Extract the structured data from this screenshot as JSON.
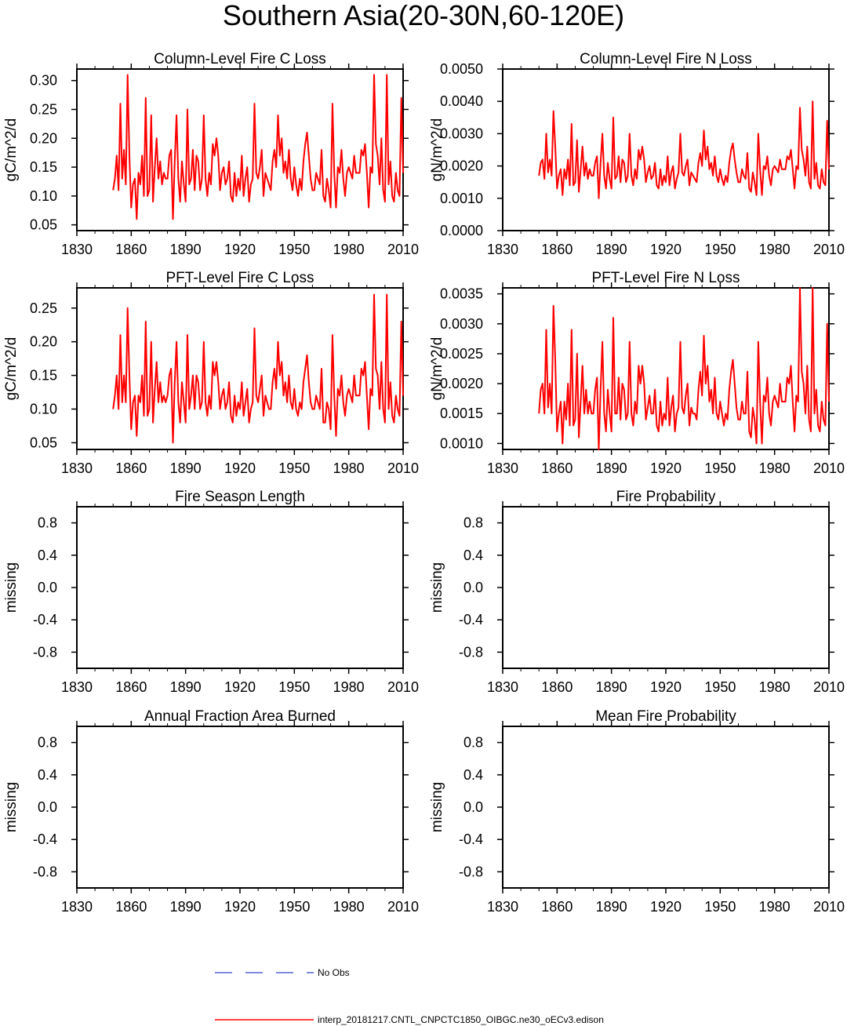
{
  "title": "Southern Asia(20-30N,60-120E)",
  "colors": {
    "series": "#ff0000",
    "obs": "#3344cc",
    "axis": "#000000"
  },
  "legend": {
    "obs_label": "No Obs",
    "model_label": "interp_20181217.CNTL_CNPCTC1850_OIBGC.ne30_oECv3.edison"
  },
  "chart_data": [
    {
      "type": "line",
      "title": "Column-Level Fire C Loss",
      "ylabel": "gC/m^2/d",
      "xlim": [
        1830,
        2010
      ],
      "ylim": [
        0.04,
        0.32
      ],
      "xticks": [
        "1830",
        "1860",
        "1890",
        "1920",
        "1950",
        "1980",
        "2010"
      ],
      "yticks": [
        {
          "v": 0.05,
          "label": "0.05"
        },
        {
          "v": 0.1,
          "label": "0.10"
        },
        {
          "v": 0.15,
          "label": "0.15"
        },
        {
          "v": 0.2,
          "label": "0.20"
        },
        {
          "v": 0.25,
          "label": "0.25"
        },
        {
          "v": 0.3,
          "label": "0.30"
        }
      ],
      "series": [
        {
          "x_start": 1850,
          "values": [
            0.11,
            0.13,
            0.17,
            0.11,
            0.26,
            0.13,
            0.18,
            0.12,
            0.31,
            0.17,
            0.08,
            0.12,
            0.13,
            0.06,
            0.14,
            0.12,
            0.17,
            0.1,
            0.27,
            0.1,
            0.11,
            0.24,
            0.09,
            0.15,
            0.2,
            0.13,
            0.16,
            0.12,
            0.14,
            0.13,
            0.13,
            0.17,
            0.18,
            0.06,
            0.16,
            0.24,
            0.13,
            0.09,
            0.16,
            0.12,
            0.09,
            0.25,
            0.12,
            0.13,
            0.18,
            0.11,
            0.17,
            0.16,
            0.11,
            0.13,
            0.24,
            0.13,
            0.1,
            0.14,
            0.12,
            0.19,
            0.17,
            0.2,
            0.17,
            0.11,
            0.14,
            0.15,
            0.12,
            0.13,
            0.16,
            0.1,
            0.09,
            0.14,
            0.1,
            0.13,
            0.11,
            0.17,
            0.1,
            0.13,
            0.15,
            0.09,
            0.12,
            0.13,
            0.26,
            0.14,
            0.13,
            0.15,
            0.18,
            0.1,
            0.14,
            0.13,
            0.12,
            0.11,
            0.16,
            0.18,
            0.15,
            0.24,
            0.17,
            0.2,
            0.14,
            0.16,
            0.13,
            0.18,
            0.13,
            0.11,
            0.15,
            0.12,
            0.1,
            0.13,
            0.11,
            0.16,
            0.19,
            0.21,
            0.17,
            0.13,
            0.11,
            0.11,
            0.14,
            0.13,
            0.12,
            0.18,
            0.1,
            0.09,
            0.13,
            0.11,
            0.08,
            0.26,
            0.14,
            0.08,
            0.15,
            0.14,
            0.18,
            0.13,
            0.1,
            0.14,
            0.15,
            0.14,
            0.13,
            0.17,
            0.14,
            0.14,
            0.14,
            0.18,
            0.17,
            0.19,
            0.14,
            0.08,
            0.15,
            0.14,
            0.31,
            0.19,
            0.17,
            0.12,
            0.2,
            0.11,
            0.09,
            0.31,
            0.12,
            0.16,
            0.1,
            0.09,
            0.14,
            0.11,
            0.1,
            0.27,
            0.14
          ]
        }
      ]
    },
    {
      "type": "line",
      "title": "Column-Level Fire N Loss",
      "ylabel": "gN/m^2/d",
      "xlim": [
        1830,
        2010
      ],
      "ylim": [
        0.0,
        0.005
      ],
      "xticks": [
        "1830",
        "1860",
        "1890",
        "1920",
        "1950",
        "1980",
        "2010"
      ],
      "yticks": [
        {
          "v": 0.0,
          "label": "0.0000"
        },
        {
          "v": 0.001,
          "label": "0.0010"
        },
        {
          "v": 0.002,
          "label": "0.0020"
        },
        {
          "v": 0.003,
          "label": "0.0030"
        },
        {
          "v": 0.004,
          "label": "0.0040"
        },
        {
          "v": 0.005,
          "label": "0.0050"
        }
      ],
      "series": [
        {
          "x_start": 1850,
          "values": [
            0.0017,
            0.0021,
            0.0022,
            0.0016,
            0.003,
            0.0018,
            0.0022,
            0.0017,
            0.0037,
            0.0026,
            0.0013,
            0.0017,
            0.0019,
            0.0011,
            0.0019,
            0.0016,
            0.0022,
            0.0014,
            0.0033,
            0.0014,
            0.0015,
            0.0028,
            0.0012,
            0.0019,
            0.0026,
            0.0017,
            0.0021,
            0.0016,
            0.0019,
            0.0017,
            0.0017,
            0.0021,
            0.0023,
            0.001,
            0.0021,
            0.003,
            0.0017,
            0.0013,
            0.0021,
            0.0016,
            0.0013,
            0.0035,
            0.0016,
            0.0017,
            0.0023,
            0.0015,
            0.0022,
            0.0021,
            0.0015,
            0.0017,
            0.003,
            0.0017,
            0.0014,
            0.0019,
            0.0016,
            0.0025,
            0.0022,
            0.0026,
            0.0022,
            0.0015,
            0.0018,
            0.002,
            0.0016,
            0.0017,
            0.0021,
            0.0014,
            0.0013,
            0.0019,
            0.0014,
            0.0017,
            0.0015,
            0.0023,
            0.0014,
            0.0018,
            0.002,
            0.0013,
            0.0016,
            0.0018,
            0.003,
            0.0018,
            0.0017,
            0.002,
            0.0022,
            0.0014,
            0.0018,
            0.0017,
            0.0016,
            0.0015,
            0.0021,
            0.0024,
            0.002,
            0.0031,
            0.0022,
            0.0026,
            0.0019,
            0.0021,
            0.0017,
            0.0023,
            0.0017,
            0.0015,
            0.0019,
            0.0016,
            0.0014,
            0.0017,
            0.0015,
            0.0021,
            0.0025,
            0.0027,
            0.0022,
            0.0018,
            0.0015,
            0.0015,
            0.0019,
            0.0017,
            0.0016,
            0.0024,
            0.0013,
            0.0012,
            0.0018,
            0.0015,
            0.0011,
            0.003,
            0.0019,
            0.0011,
            0.002,
            0.0019,
            0.0023,
            0.0017,
            0.0014,
            0.0019,
            0.002,
            0.0019,
            0.0018,
            0.0022,
            0.0019,
            0.0019,
            0.0019,
            0.0023,
            0.0022,
            0.0025,
            0.0019,
            0.0013,
            0.002,
            0.0019,
            0.0038,
            0.0025,
            0.0022,
            0.0017,
            0.0026,
            0.0015,
            0.0013,
            0.004,
            0.0016,
            0.0021,
            0.0014,
            0.0013,
            0.0019,
            0.0015,
            0.0014,
            0.0034,
            0.0019
          ]
        }
      ]
    },
    {
      "type": "line",
      "title": "PFT-Level Fire C Loss",
      "ylabel": "gC/m^2/d",
      "xlim": [
        1830,
        2010
      ],
      "ylim": [
        0.04,
        0.28
      ],
      "xticks": [
        "1830",
        "1860",
        "1890",
        "1920",
        "1950",
        "1980",
        "2010"
      ],
      "yticks": [
        {
          "v": 0.05,
          "label": "0.05"
        },
        {
          "v": 0.1,
          "label": "0.10"
        },
        {
          "v": 0.15,
          "label": "0.15"
        },
        {
          "v": 0.2,
          "label": "0.20"
        },
        {
          "v": 0.25,
          "label": "0.25"
        }
      ],
      "series": [
        {
          "x_start": 1850,
          "values": [
            0.1,
            0.12,
            0.15,
            0.1,
            0.21,
            0.11,
            0.15,
            0.11,
            0.25,
            0.15,
            0.07,
            0.11,
            0.12,
            0.06,
            0.12,
            0.11,
            0.15,
            0.09,
            0.23,
            0.09,
            0.1,
            0.2,
            0.08,
            0.13,
            0.17,
            0.11,
            0.14,
            0.11,
            0.12,
            0.11,
            0.12,
            0.15,
            0.16,
            0.05,
            0.14,
            0.2,
            0.11,
            0.08,
            0.14,
            0.11,
            0.08,
            0.21,
            0.1,
            0.12,
            0.15,
            0.1,
            0.15,
            0.14,
            0.1,
            0.11,
            0.2,
            0.11,
            0.09,
            0.12,
            0.1,
            0.17,
            0.15,
            0.17,
            0.14,
            0.1,
            0.12,
            0.13,
            0.1,
            0.11,
            0.14,
            0.09,
            0.08,
            0.12,
            0.09,
            0.11,
            0.1,
            0.14,
            0.09,
            0.11,
            0.13,
            0.08,
            0.1,
            0.11,
            0.22,
            0.12,
            0.11,
            0.13,
            0.15,
            0.09,
            0.12,
            0.11,
            0.1,
            0.1,
            0.14,
            0.16,
            0.13,
            0.2,
            0.15,
            0.17,
            0.12,
            0.14,
            0.11,
            0.15,
            0.11,
            0.1,
            0.13,
            0.1,
            0.09,
            0.11,
            0.1,
            0.14,
            0.16,
            0.18,
            0.14,
            0.11,
            0.1,
            0.1,
            0.12,
            0.11,
            0.1,
            0.16,
            0.08,
            0.08,
            0.11,
            0.1,
            0.07,
            0.21,
            0.12,
            0.06,
            0.13,
            0.12,
            0.15,
            0.11,
            0.09,
            0.12,
            0.13,
            0.12,
            0.11,
            0.15,
            0.12,
            0.12,
            0.12,
            0.16,
            0.15,
            0.17,
            0.12,
            0.07,
            0.13,
            0.12,
            0.27,
            0.16,
            0.15,
            0.1,
            0.17,
            0.1,
            0.08,
            0.27,
            0.1,
            0.14,
            0.09,
            0.08,
            0.12,
            0.1,
            0.09,
            0.23,
            0.12
          ]
        }
      ]
    },
    {
      "type": "line",
      "title": "PFT-Level Fire N Loss",
      "ylabel": "gN/m^2/d",
      "xlim": [
        1830,
        2010
      ],
      "ylim": [
        0.0009,
        0.0036
      ],
      "xticks": [
        "1830",
        "1860",
        "1890",
        "1920",
        "1950",
        "1980",
        "2010"
      ],
      "yticks": [
        {
          "v": 0.001,
          "label": "0.0010"
        },
        {
          "v": 0.0015,
          "label": "0.0015"
        },
        {
          "v": 0.002,
          "label": "0.0020"
        },
        {
          "v": 0.0025,
          "label": "0.0025"
        },
        {
          "v": 0.003,
          "label": "0.0030"
        },
        {
          "v": 0.0035,
          "label": "0.0035"
        }
      ],
      "series": [
        {
          "x_start": 1850,
          "values": [
            0.0015,
            0.0019,
            0.002,
            0.0015,
            0.0029,
            0.0016,
            0.002,
            0.0015,
            0.0033,
            0.0024,
            0.0012,
            0.0015,
            0.0017,
            0.001,
            0.0017,
            0.0014,
            0.002,
            0.0013,
            0.0029,
            0.0013,
            0.0014,
            0.0025,
            0.0011,
            0.0017,
            0.0023,
            0.0015,
            0.0019,
            0.0015,
            0.0017,
            0.0015,
            0.0015,
            0.0019,
            0.0021,
            0.0009,
            0.0019,
            0.0027,
            0.0015,
            0.0012,
            0.0019,
            0.0015,
            0.0012,
            0.0031,
            0.0015,
            0.0015,
            0.0021,
            0.0014,
            0.002,
            0.0019,
            0.0014,
            0.0015,
            0.0027,
            0.0015,
            0.0013,
            0.0017,
            0.0015,
            0.0023,
            0.002,
            0.0023,
            0.002,
            0.0014,
            0.0016,
            0.0018,
            0.0015,
            0.0015,
            0.0019,
            0.0013,
            0.0012,
            0.0017,
            0.0013,
            0.0015,
            0.0014,
            0.0021,
            0.0013,
            0.0016,
            0.0018,
            0.0012,
            0.0015,
            0.0016,
            0.0027,
            0.0016,
            0.0015,
            0.0018,
            0.002,
            0.0013,
            0.0016,
            0.0015,
            0.0015,
            0.0014,
            0.0019,
            0.0022,
            0.0018,
            0.0028,
            0.002,
            0.0023,
            0.0017,
            0.0019,
            0.0015,
            0.0021,
            0.0015,
            0.0014,
            0.0017,
            0.0015,
            0.0013,
            0.0015,
            0.0014,
            0.0019,
            0.0022,
            0.0024,
            0.002,
            0.0016,
            0.0014,
            0.0014,
            0.0017,
            0.0015,
            0.0015,
            0.0022,
            0.0012,
            0.0011,
            0.0016,
            0.0014,
            0.001,
            0.0027,
            0.0017,
            0.001,
            0.0018,
            0.0017,
            0.0021,
            0.0015,
            0.0013,
            0.0017,
            0.0018,
            0.0017,
            0.0016,
            0.002,
            0.0017,
            0.0017,
            0.0017,
            0.0021,
            0.002,
            0.0023,
            0.0017,
            0.0012,
            0.0018,
            0.0017,
            0.0036,
            0.0022,
            0.002,
            0.0015,
            0.0023,
            0.0014,
            0.0012,
            0.0036,
            0.0015,
            0.0019,
            0.0013,
            0.0012,
            0.0017,
            0.0014,
            0.0013,
            0.003,
            0.0017
          ]
        }
      ]
    },
    {
      "type": "line",
      "title": "Fire Season Length",
      "ylabel": "missing",
      "xlim": [
        1830,
        2010
      ],
      "ylim": [
        -1.0,
        1.0
      ],
      "xticks": [
        "1830",
        "1860",
        "1890",
        "1920",
        "1950",
        "1980",
        "2010"
      ],
      "yticks": [
        {
          "v": 0.8,
          "label": "0.8"
        },
        {
          "v": 0.4,
          "label": "0.4"
        },
        {
          "v": 0.0,
          "label": "0.0"
        },
        {
          "v": -0.4,
          "label": "-0.4"
        },
        {
          "v": -0.8,
          "label": "-0.8"
        }
      ],
      "series": []
    },
    {
      "type": "line",
      "title": "Fire Probability",
      "ylabel": "missing",
      "xlim": [
        1830,
        2010
      ],
      "ylim": [
        -1.0,
        1.0
      ],
      "xticks": [
        "1830",
        "1860",
        "1890",
        "1920",
        "1950",
        "1980",
        "2010"
      ],
      "yticks": [
        {
          "v": 0.8,
          "label": "0.8"
        },
        {
          "v": 0.4,
          "label": "0.4"
        },
        {
          "v": 0.0,
          "label": "0.0"
        },
        {
          "v": -0.4,
          "label": "-0.4"
        },
        {
          "v": -0.8,
          "label": "-0.8"
        }
      ],
      "series": []
    },
    {
      "type": "line",
      "title": "Annual Fraction Area Burned",
      "ylabel": "missing",
      "xlim": [
        1830,
        2010
      ],
      "ylim": [
        -1.0,
        1.0
      ],
      "xticks": [
        "1830",
        "1860",
        "1890",
        "1920",
        "1950",
        "1980",
        "2010"
      ],
      "yticks": [
        {
          "v": 0.8,
          "label": "0.8"
        },
        {
          "v": 0.4,
          "label": "0.4"
        },
        {
          "v": 0.0,
          "label": "0.0"
        },
        {
          "v": -0.4,
          "label": "-0.4"
        },
        {
          "v": -0.8,
          "label": "-0.8"
        }
      ],
      "series": []
    },
    {
      "type": "line",
      "title": "Mean Fire Probability",
      "ylabel": "missing",
      "xlim": [
        1830,
        2010
      ],
      "ylim": [
        -1.0,
        1.0
      ],
      "xticks": [
        "1830",
        "1860",
        "1890",
        "1920",
        "1950",
        "1980",
        "2010"
      ],
      "yticks": [
        {
          "v": 0.8,
          "label": "0.8"
        },
        {
          "v": 0.4,
          "label": "0.4"
        },
        {
          "v": 0.0,
          "label": "0.0"
        },
        {
          "v": -0.4,
          "label": "-0.4"
        },
        {
          "v": -0.8,
          "label": "-0.8"
        }
      ],
      "series": []
    }
  ]
}
